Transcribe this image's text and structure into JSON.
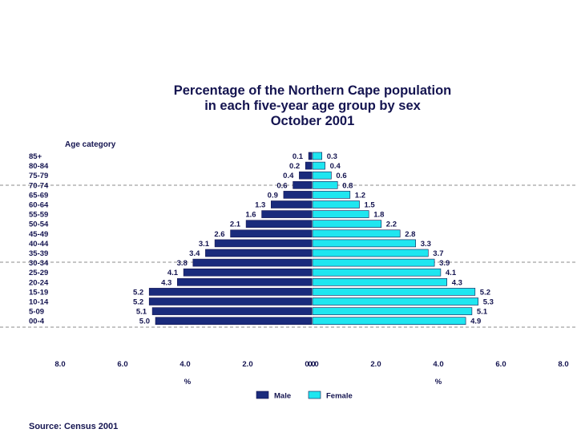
{
  "chart_data": {
    "type": "bar",
    "orientation": "horizontal-population-pyramid",
    "title": [
      "Percentage of the Northern Cape population",
      "in each five-year age group by sex",
      "October 2001"
    ],
    "ylabel": "Age category",
    "xlabel_left": "%",
    "xlabel_right": "%",
    "xlim": [
      0,
      8
    ],
    "x_ticks_left": [
      "8.0",
      "6.0",
      "4.0",
      "2.0",
      "0.0"
    ],
    "x_ticks_right": [
      "0.0",
      "2.0",
      "4.0",
      "6.0",
      "8.0"
    ],
    "categories": [
      "85+",
      "80-84",
      "75-79",
      "70-74",
      "65-69",
      "60-64",
      "55-59",
      "50-54",
      "45-49",
      "40-44",
      "35-39",
      "30-34",
      "25-29",
      "20-24",
      "15-19",
      "10-14",
      "5-09",
      "00-4"
    ],
    "series": [
      {
        "name": "Male",
        "color": "#1a2b7c",
        "values": [
          0.1,
          0.2,
          0.4,
          0.6,
          0.9,
          1.3,
          1.6,
          2.1,
          2.6,
          3.1,
          3.4,
          3.8,
          4.1,
          4.3,
          5.2,
          5.2,
          5.1,
          5.0
        ]
      },
      {
        "name": "Female",
        "color": "#1fe6f0",
        "values": [
          0.3,
          0.4,
          0.6,
          0.8,
          1.2,
          1.5,
          1.8,
          2.2,
          2.8,
          3.3,
          3.7,
          3.9,
          4.1,
          4.3,
          5.2,
          5.3,
          5.1,
          4.9
        ]
      }
    ],
    "legend": "bottom-center",
    "source": "Source: Census 2001"
  }
}
